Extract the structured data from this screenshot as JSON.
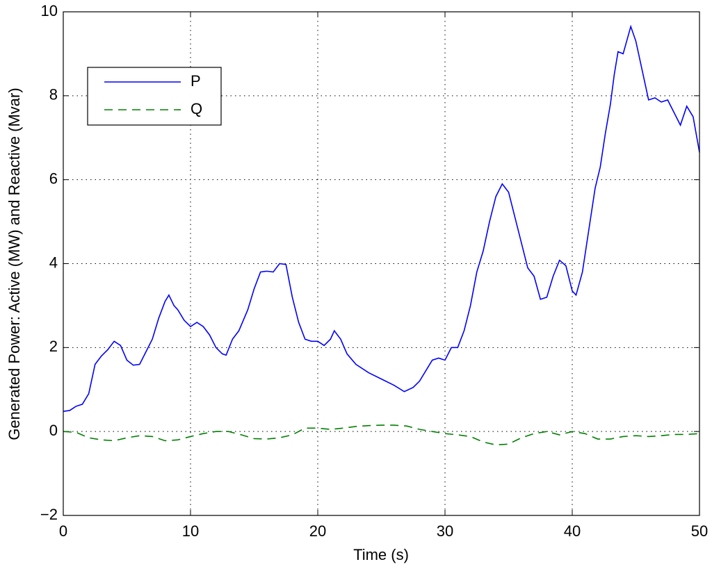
{
  "chart_data": {
    "type": "line",
    "x_label": "Time (s)",
    "y_label": "Generated Power: Active (MW) and Reactive (Mvar)",
    "xlim": [
      0,
      50
    ],
    "ylim": [
      -2,
      10
    ],
    "xticks": [
      0,
      10,
      20,
      30,
      40,
      50
    ],
    "yticks": [
      {
        "value": -2,
        "label": "−2"
      },
      0,
      2,
      4,
      6,
      8,
      10
    ],
    "grid": true,
    "legend": "northwest",
    "series": [
      {
        "name": "P",
        "color": "#0000ff",
        "dash": "solid",
        "x": [
          0,
          0.5,
          1,
          1.5,
          2,
          2.5,
          3,
          3.5,
          4,
          4.5,
          5,
          5.5,
          6,
          6.5,
          7,
          7.5,
          8,
          8.3,
          8.7,
          9,
          9.5,
          10,
          10.5,
          11,
          11.5,
          12,
          12.5,
          12.8,
          13.3,
          13.8,
          14.5,
          15,
          15.5,
          16,
          16.5,
          17,
          17.5,
          18,
          18.5,
          19,
          19.5,
          20,
          20.5,
          21,
          21.3,
          21.8,
          22.3,
          23,
          24,
          25,
          26,
          26.8,
          27.5,
          28,
          29,
          29.5,
          30,
          30.5,
          31,
          31.5,
          32,
          32.5,
          33,
          33.5,
          34,
          34.5,
          35,
          35.5,
          36,
          36.5,
          37,
          37.5,
          38,
          38.5,
          39,
          39.5,
          40,
          40.3,
          40.8,
          41.3,
          41.8,
          42.2,
          42.6,
          43,
          43.3,
          43.6,
          44,
          44.6,
          45,
          45.5,
          46,
          46.5,
          47,
          47.5,
          48,
          48.5,
          49,
          49.5,
          50
        ],
        "values": [
          0.48,
          0.5,
          0.6,
          0.65,
          0.9,
          1.6,
          1.8,
          1.95,
          2.15,
          2.05,
          1.7,
          1.58,
          1.6,
          1.9,
          2.2,
          2.7,
          3.1,
          3.25,
          3.0,
          2.9,
          2.65,
          2.5,
          2.6,
          2.5,
          2.3,
          2.0,
          1.85,
          1.82,
          2.2,
          2.4,
          2.9,
          3.4,
          3.8,
          3.82,
          3.8,
          4.0,
          3.98,
          3.2,
          2.6,
          2.2,
          2.15,
          2.15,
          2.05,
          2.2,
          2.4,
          2.2,
          1.85,
          1.6,
          1.4,
          1.25,
          1.1,
          0.95,
          1.05,
          1.2,
          1.7,
          1.75,
          1.7,
          2.0,
          2.0,
          2.4,
          3.0,
          3.8,
          4.3,
          5.0,
          5.6,
          5.9,
          5.7,
          5.1,
          4.5,
          3.9,
          3.7,
          3.15,
          3.2,
          3.7,
          4.08,
          3.95,
          3.35,
          3.25,
          3.8,
          4.8,
          5.8,
          6.3,
          7.1,
          7.8,
          8.5,
          9.05,
          9.0,
          9.65,
          9.3,
          8.6,
          7.9,
          7.95,
          7.85,
          7.9,
          7.6,
          7.3,
          7.75,
          7.5,
          6.65
        ]
      },
      {
        "name": "Q",
        "color": "#008000",
        "dash": "dashed",
        "x": [
          0,
          1,
          2,
          3,
          4,
          5,
          6,
          7,
          8,
          9,
          10,
          11,
          12,
          13,
          14,
          15,
          16,
          17,
          18,
          19,
          20,
          21,
          22,
          23,
          24,
          25,
          26,
          27,
          28,
          29,
          30,
          31,
          32,
          33,
          34,
          35,
          36,
          37,
          38,
          39,
          40,
          41,
          42,
          43,
          44,
          45,
          46,
          47,
          48,
          49,
          50
        ],
        "values": [
          0,
          -0.02,
          -0.15,
          -0.2,
          -0.22,
          -0.15,
          -0.1,
          -0.12,
          -0.22,
          -0.2,
          -0.12,
          -0.05,
          0,
          0,
          -0.08,
          -0.17,
          -0.18,
          -0.15,
          -0.08,
          0.08,
          0.08,
          0.05,
          0.08,
          0.12,
          0.14,
          0.15,
          0.15,
          0.13,
          0.05,
          0,
          -0.05,
          -0.08,
          -0.12,
          -0.25,
          -0.32,
          -0.3,
          -0.15,
          -0.05,
          0,
          -0.08,
          0,
          -0.05,
          -0.18,
          -0.18,
          -0.12,
          -0.1,
          -0.12,
          -0.1,
          -0.07,
          -0.07,
          -0.05
        ]
      }
    ]
  }
}
